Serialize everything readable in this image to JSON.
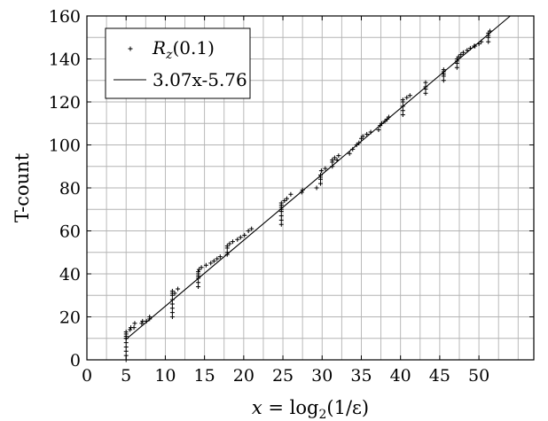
{
  "chart_data": {
    "type": "scatter",
    "xlabel_parts": [
      "x",
      " = log",
      "2",
      "(1/ε)"
    ],
    "ylabel": "T-count",
    "xlim": [
      0,
      57
    ],
    "ylim": [
      0,
      160
    ],
    "x_ticks": [
      0,
      5,
      10,
      15,
      20,
      25,
      30,
      35,
      40,
      45,
      50
    ],
    "y_ticks": [
      0,
      20,
      40,
      60,
      80,
      100,
      120,
      140,
      160
    ],
    "grid": true,
    "grid_step": {
      "x": 2.5,
      "y": 10
    },
    "legend_position": "top-left",
    "series": [
      {
        "name_parts": [
          "R",
          "z",
          "(0.1)"
        ],
        "kind": "points",
        "marker": "plus",
        "x": [
          5,
          5,
          5,
          5,
          5,
          5,
          5,
          5,
          5,
          5,
          5.5,
          5.6,
          6,
          6.1,
          7,
          7.1,
          7.6,
          8,
          8,
          10.9,
          10.9,
          10.9,
          10.9,
          10.9,
          10.9,
          10.9,
          10.9,
          11.2,
          11.6,
          14.2,
          14.2,
          14.2,
          14.2,
          14.2,
          14.2,
          14.3,
          14.6,
          15.2,
          15.8,
          16.2,
          16.6,
          17,
          17.9,
          17.9,
          17.9,
          17.9,
          18.2,
          18.6,
          19.2,
          19.6,
          20.1,
          20.6,
          21,
          24.8,
          24.8,
          24.8,
          24.8,
          24.8,
          24.8,
          24.8,
          24.8,
          25.2,
          25.5,
          26,
          27.4,
          27.5,
          29.3,
          29.8,
          29.8,
          29.8,
          29.8,
          29.9,
          30.4,
          31.3,
          31.3,
          31.3,
          31.6,
          31.9,
          32.1,
          33.5,
          33.9,
          34.4,
          34.7,
          35,
          35.2,
          35.7,
          36.2,
          37.2,
          37.4,
          37.6,
          38,
          38.3,
          38.5,
          40.3,
          40.3,
          40.3,
          40.3,
          40.3,
          40.8,
          41.2,
          43.2,
          43.2,
          43.2,
          43.2,
          45.5,
          45.5,
          45.5,
          45.5,
          45.5,
          47.2,
          47.2,
          47.2,
          47.2,
          47.4,
          47.7,
          48,
          48.5,
          48.9,
          49.4,
          49.5,
          50,
          50.3,
          51.2,
          51.2,
          51.2,
          51.2,
          51.4
        ],
        "y": [
          0,
          2,
          4,
          6,
          8,
          10,
          11,
          10,
          12,
          13,
          14,
          15,
          15,
          17,
          17,
          18,
          18,
          19,
          20,
          20,
          22,
          24,
          26,
          28,
          30,
          31,
          32,
          31,
          33,
          34,
          36,
          38,
          39,
          40,
          41,
          42,
          43,
          44,
          45,
          46,
          47,
          48,
          49,
          50,
          52,
          53,
          54,
          55,
          56,
          57,
          58,
          60,
          61,
          63,
          65,
          67,
          69,
          70,
          71,
          72,
          73,
          74,
          75,
          77,
          78,
          79,
          80,
          82,
          84,
          85,
          86,
          88,
          89,
          90,
          92,
          93,
          94,
          93,
          95,
          96,
          98,
          100,
          101,
          103,
          104,
          105,
          106,
          107,
          109,
          110,
          111,
          112,
          113,
          114,
          116,
          118,
          120,
          121,
          122,
          123,
          124,
          126,
          127,
          129,
          130,
          132,
          133,
          134,
          135,
          136,
          138,
          139,
          140,
          141,
          142,
          143,
          144,
          145,
          146,
          146,
          147,
          148,
          148,
          150,
          151,
          152,
          153
        ]
      },
      {
        "name": "3.07x-5.76",
        "kind": "line",
        "slope": 3.07,
        "intercept": -5.76,
        "x_range": [
          4.96,
          57
        ]
      }
    ]
  }
}
